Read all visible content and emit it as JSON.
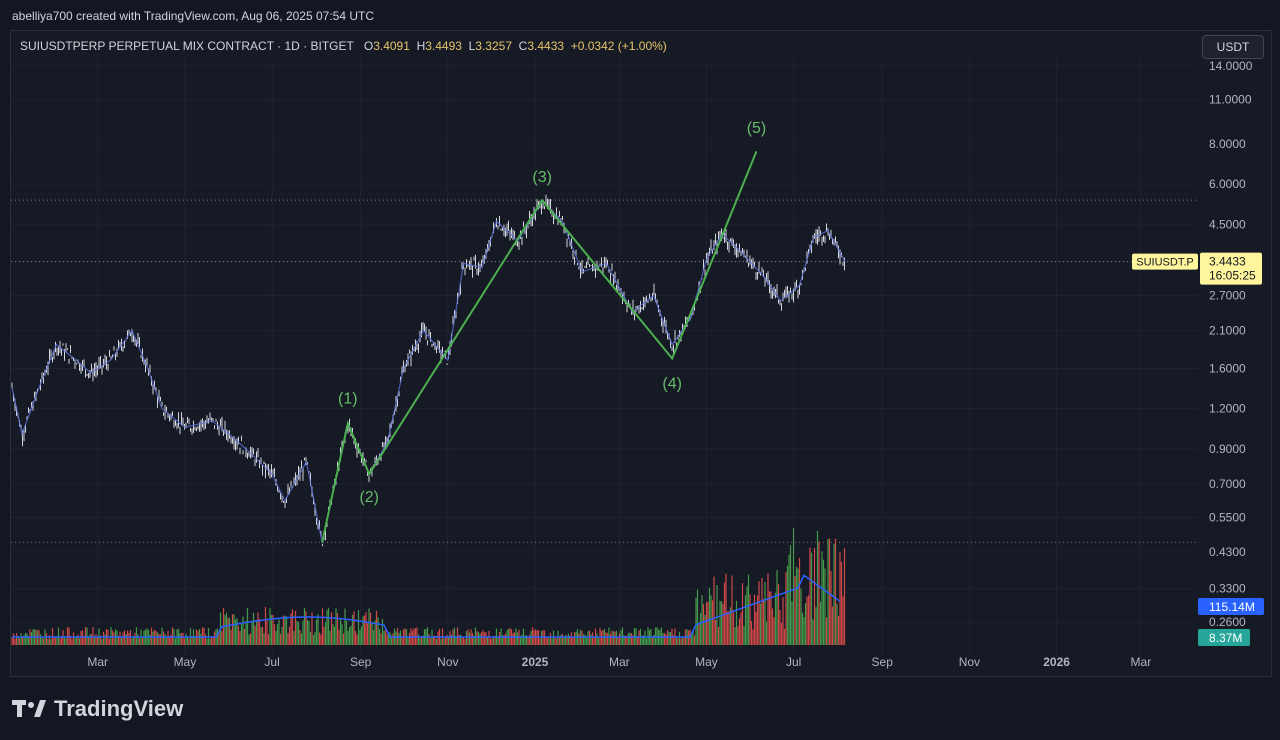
{
  "header": {
    "credit": "abelliya700 created with TradingView.com, Aug 06, 2025 07:54 UTC",
    "symbol": "SUIUSDTPERP PERPETUAL MIX CONTRACT · 1D · BITGET",
    "o_label": "O",
    "o": "3.4091",
    "h_label": "H",
    "h": "3.4493",
    "l_label": "L",
    "l": "3.3257",
    "c_label": "C",
    "c": "3.4433",
    "change": "+0.0342 (+1.00%)",
    "currency": "USDT"
  },
  "price_label": {
    "symbol": "SUIUSDT.P",
    "price": "3.4433",
    "countdown": "16:05:25"
  },
  "volume_labels": {
    "ma": "115.14M",
    "vol": "8.37M"
  },
  "brand": {
    "name": "TradingView"
  },
  "colors": {
    "background": "#161a25",
    "wave": "#4caf50",
    "wave_text": "#66bb6a",
    "candle": "#d1d4dc",
    "ma_line": "#2962ff",
    "vol_up": "#4caf50",
    "vol_down": "#ef5350",
    "price_label_bg": "#fff59d",
    "ma_label_bg": "#2962ff",
    "vol_label_bg": "#26a69a"
  },
  "chart_data": {
    "type": "line",
    "scale": "log",
    "y_ticks": [
      "14.0000",
      "11.0000",
      "8.0000",
      "6.0000",
      "4.5000",
      "3.4433",
      "2.7000",
      "2.1000",
      "1.6000",
      "1.2000",
      "0.9000",
      "0.7000",
      "0.5500",
      "0.4300",
      "0.3300",
      "0.2600"
    ],
    "x_ticks": [
      "Mar",
      "May",
      "Jul",
      "Sep",
      "Nov",
      "2025",
      "Mar",
      "May",
      "Jul",
      "Sep",
      "Nov",
      "2026",
      "Mar"
    ],
    "wave_points": [
      {
        "label": "",
        "date": "2024-08-05",
        "price": 0.46
      },
      {
        "label": "(1)",
        "date": "2024-08-23",
        "price": 1.08
      },
      {
        "label": "(2)",
        "date": "2024-09-07",
        "price": 0.75
      },
      {
        "label": "(3)",
        "date": "2025-01-06",
        "price": 5.35
      },
      {
        "label": "(4)",
        "date": "2025-04-07",
        "price": 1.72
      },
      {
        "label": "(5)",
        "date": "2025-06-05",
        "price": 7.6
      }
    ],
    "price_path": [
      {
        "date": "2024-01-01",
        "price": 1.4
      },
      {
        "date": "2024-01-08",
        "price": 1.0
      },
      {
        "date": "2024-01-20",
        "price": 1.4
      },
      {
        "date": "2024-02-01",
        "price": 1.9
      },
      {
        "date": "2024-02-15",
        "price": 1.7
      },
      {
        "date": "2024-02-25",
        "price": 1.55
      },
      {
        "date": "2024-03-10",
        "price": 1.7
      },
      {
        "date": "2024-03-25",
        "price": 2.1
      },
      {
        "date": "2024-04-05",
        "price": 1.6
      },
      {
        "date": "2024-04-15",
        "price": 1.2
      },
      {
        "date": "2024-05-01",
        "price": 1.05
      },
      {
        "date": "2024-05-20",
        "price": 1.1
      },
      {
        "date": "2024-06-01",
        "price": 1.0
      },
      {
        "date": "2024-06-15",
        "price": 0.88
      },
      {
        "date": "2024-07-01",
        "price": 0.75
      },
      {
        "date": "2024-07-10",
        "price": 0.62
      },
      {
        "date": "2024-07-25",
        "price": 0.82
      },
      {
        "date": "2024-08-05",
        "price": 0.46
      },
      {
        "date": "2024-08-23",
        "price": 1.08
      },
      {
        "date": "2024-09-07",
        "price": 0.75
      },
      {
        "date": "2024-09-20",
        "price": 0.95
      },
      {
        "date": "2024-10-01",
        "price": 1.6
      },
      {
        "date": "2024-10-15",
        "price": 2.1
      },
      {
        "date": "2024-11-01",
        "price": 1.7
      },
      {
        "date": "2024-11-12",
        "price": 3.4
      },
      {
        "date": "2024-11-25",
        "price": 3.3
      },
      {
        "date": "2024-12-05",
        "price": 4.6
      },
      {
        "date": "2024-12-20",
        "price": 4.0
      },
      {
        "date": "2025-01-06",
        "price": 5.3
      },
      {
        "date": "2025-01-20",
        "price": 4.6
      },
      {
        "date": "2025-02-03",
        "price": 3.2
      },
      {
        "date": "2025-02-20",
        "price": 3.4
      },
      {
        "date": "2025-03-10",
        "price": 2.4
      },
      {
        "date": "2025-03-25",
        "price": 2.7
      },
      {
        "date": "2025-04-07",
        "price": 1.9
      },
      {
        "date": "2025-04-20",
        "price": 2.3
      },
      {
        "date": "2025-05-01",
        "price": 3.5
      },
      {
        "date": "2025-05-12",
        "price": 4.2
      },
      {
        "date": "2025-05-25",
        "price": 3.7
      },
      {
        "date": "2025-06-10",
        "price": 3.1
      },
      {
        "date": "2025-06-22",
        "price": 2.6
      },
      {
        "date": "2025-07-05",
        "price": 2.9
      },
      {
        "date": "2025-07-15",
        "price": 4.1
      },
      {
        "date": "2025-07-25",
        "price": 4.3
      },
      {
        "date": "2025-08-06",
        "price": 3.44
      }
    ],
    "ref_lines": [
      5.35,
      3.4433,
      0.46
    ],
    "volume": {
      "ma_last": "115.14M",
      "last": "8.37M"
    }
  }
}
